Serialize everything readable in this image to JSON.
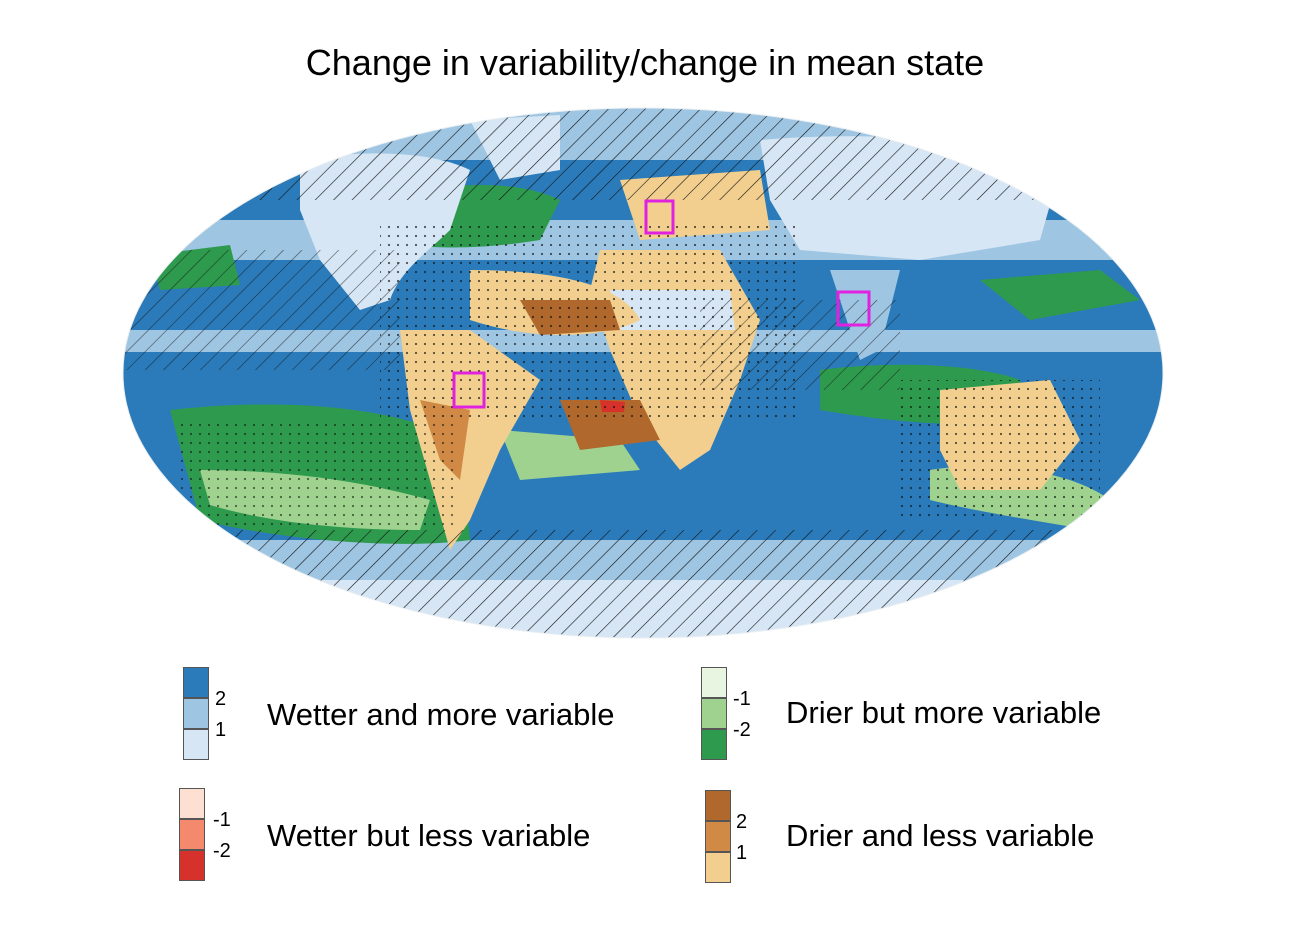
{
  "title": "Change in variability/change in mean state",
  "colors": {
    "ocean_dark": "#2b7bba",
    "ocean_mid": "#9ec5e2",
    "ocean_light": "#d6e6f4",
    "green_light": "#e8f5e1",
    "green_mid": "#9fd28f",
    "green_dark": "#2e9a4e",
    "brown_light": "#f2cf8e",
    "brown_mid": "#d08a46",
    "brown_dark": "#b0682c",
    "red_light": "#fde0d2",
    "red_mid": "#f4896e",
    "red_dark": "#d7312b",
    "box": "#e022e0"
  },
  "legend": [
    {
      "key": "wetter-more-variable",
      "label": "Wetter and more variable",
      "ticks": [
        "2",
        "1"
      ],
      "swatches": [
        "#2b7bba",
        "#9ec5e2",
        "#d6e6f4"
      ]
    },
    {
      "key": "drier-more-variable",
      "label": "Drier but more variable",
      "ticks": [
        "-1",
        "-2"
      ],
      "swatches": [
        "#e8f5e1",
        "#9fd28f",
        "#2e9a4e"
      ]
    },
    {
      "key": "wetter-less-variable",
      "label": "Wetter but less variable",
      "ticks": [
        "-1",
        "-2"
      ],
      "swatches": [
        "#fde0d2",
        "#f4896e",
        "#d7312b"
      ]
    },
    {
      "key": "drier-less-variable",
      "label": "Drier and less variable",
      "ticks": [
        "2",
        "1"
      ],
      "swatches": [
        "#b0682c",
        "#d08a46",
        "#f2cf8e"
      ]
    }
  ],
  "highlight_boxes": [
    "europe-box",
    "south-america-box",
    "india-box"
  ]
}
